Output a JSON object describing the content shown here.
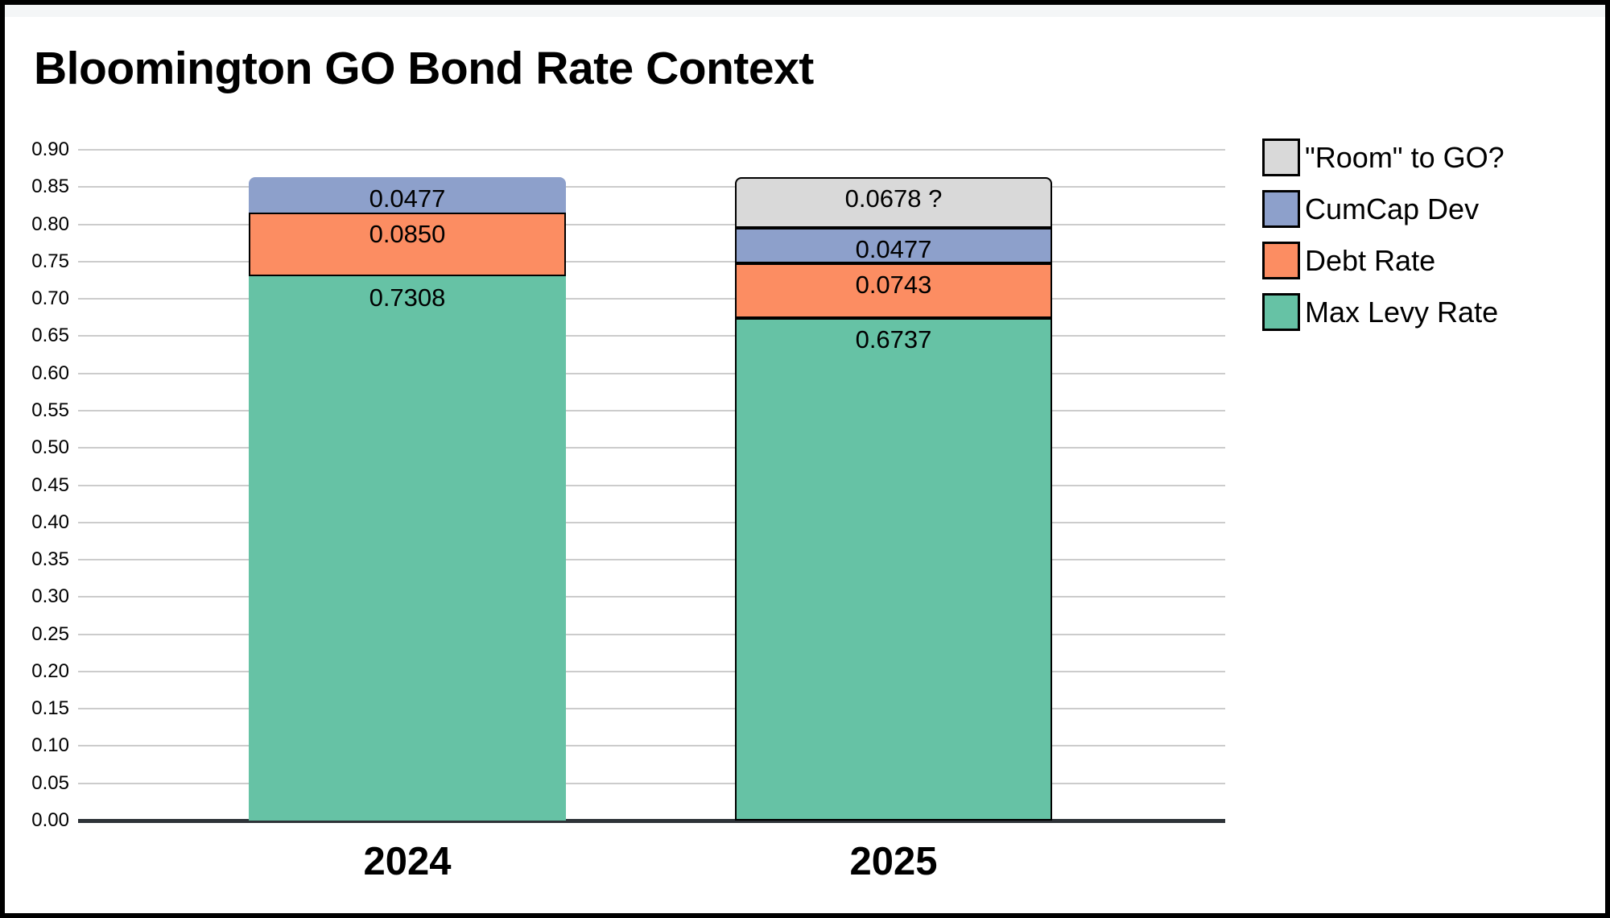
{
  "title": "Bloomington GO Bond Rate Context",
  "chart_data": {
    "type": "bar",
    "stacked": true,
    "title": "Bloomington GO Bond Rate Context",
    "categories": [
      "2024",
      "2025"
    ],
    "series": [
      {
        "name": "Max Levy Rate",
        "color": "#66c2a5",
        "values": [
          0.7308,
          0.6737
        ],
        "labels": [
          "0.7308",
          "0.6737"
        ],
        "bordered": [
          false,
          true
        ]
      },
      {
        "name": "Debt Rate",
        "color": "#fc8d62",
        "values": [
          0.085,
          0.0743
        ],
        "labels": [
          "0.0850",
          "0.0743"
        ],
        "bordered": [
          true,
          true
        ]
      },
      {
        "name": "CumCap Dev",
        "color": "#8da0cb",
        "values": [
          0.0477,
          0.0477
        ],
        "labels": [
          "0.0477",
          "0.0477"
        ],
        "bordered": [
          false,
          true
        ]
      },
      {
        "name": "\"Room\" to GO?",
        "color": "#d9d9d9",
        "values": [
          0,
          0.0678
        ],
        "labels": [
          "",
          "0.0678 ?"
        ],
        "bordered": [
          false,
          true
        ]
      }
    ],
    "totals": [
      0.8635,
      0.8635
    ],
    "legend": [
      {
        "label": "\"Room\" to GO?",
        "color": "#d9d9d9"
      },
      {
        "label": "CumCap Dev",
        "color": "#8da0cb"
      },
      {
        "label": "Debt Rate",
        "color": "#fc8d62"
      },
      {
        "label": "Max Levy Rate",
        "color": "#66c2a5"
      }
    ],
    "legend_position": "right",
    "grid": true,
    "xlabel": "",
    "ylabel": "",
    "ylim": [
      0.0,
      0.9
    ],
    "y_axis": {
      "min": 0.0,
      "max": 0.9,
      "step": 0.05,
      "tick_labels": [
        "0.00",
        "0.05",
        "0.10",
        "0.15",
        "0.20",
        "0.25",
        "0.30",
        "0.35",
        "0.40",
        "0.45",
        "0.50",
        "0.55",
        "0.60",
        "0.65",
        "0.70",
        "0.75",
        "0.80",
        "0.85",
        "0.90"
      ]
    },
    "colors": {
      "gridline": "#cccccc",
      "baseline": "#2e3338",
      "segment_border": "#000000",
      "label_text": "#000000"
    }
  }
}
